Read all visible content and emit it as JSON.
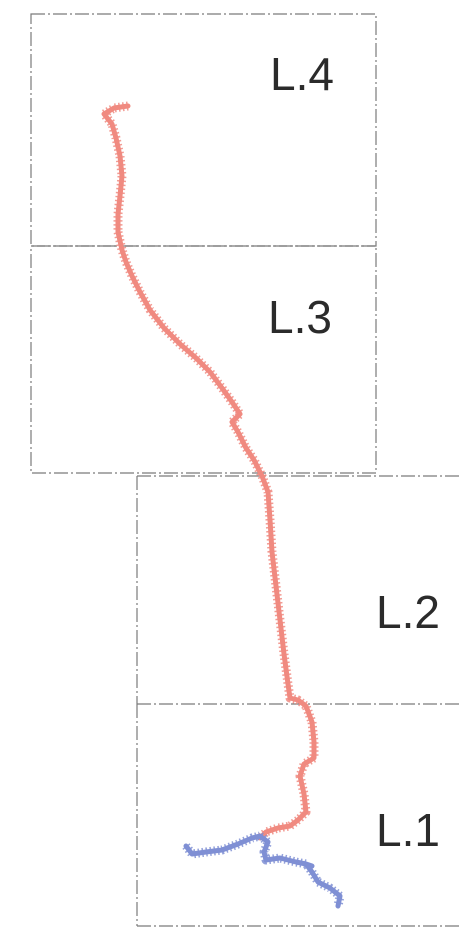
{
  "map": {
    "sheets": [
      {
        "id": "L.4",
        "label": "L.4"
      },
      {
        "id": "L.3",
        "label": "L.3"
      },
      {
        "id": "L.2",
        "label": "L.2"
      },
      {
        "id": "L.1",
        "label": "L.1"
      }
    ],
    "routes": [
      {
        "id": "main-route",
        "color": "#f08a80"
      },
      {
        "id": "branch-route",
        "color": "#7f8fd4"
      }
    ]
  }
}
